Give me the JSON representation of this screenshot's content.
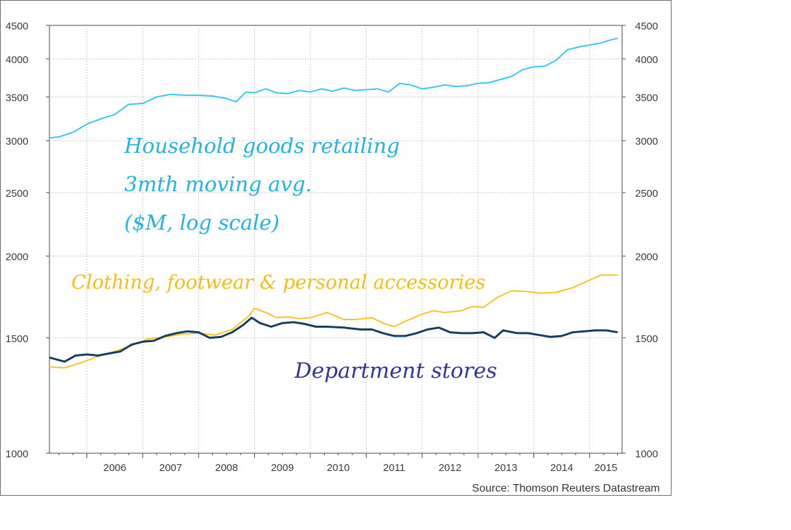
{
  "chart_data": {
    "type": "line",
    "yscale": "log",
    "ylim": [
      1000,
      4500
    ],
    "y_ticks": [
      1000,
      1500,
      2000,
      2500,
      3000,
      3500,
      4000,
      4500
    ],
    "y_tick_labels": [
      "1000",
      "1500",
      "2000",
      "2500",
      "3000",
      "3500",
      "4000",
      "4500"
    ],
    "x_labels": [
      "2006",
      "2007",
      "2008",
      "2009",
      "2010",
      "2011",
      "2012",
      "2013",
      "2014",
      "2015"
    ],
    "x_range": [
      2005.33,
      2015.58
    ],
    "grid": true,
    "source": "Source: Thomson Reuters Datastream",
    "series": [
      {
        "name": "Household goods retailing 3mth moving avg. ($M, log scale)",
        "color": "#35c8ef",
        "annotation_color": "#22b4dc",
        "points": [
          [
            2005.33,
            3030
          ],
          [
            2005.5,
            3040
          ],
          [
            2005.75,
            3090
          ],
          [
            2006.0,
            3180
          ],
          [
            2006.25,
            3240
          ],
          [
            2006.5,
            3290
          ],
          [
            2006.75,
            3410
          ],
          [
            2007.0,
            3420
          ],
          [
            2007.25,
            3500
          ],
          [
            2007.5,
            3530
          ],
          [
            2007.75,
            3520
          ],
          [
            2008.0,
            3520
          ],
          [
            2008.25,
            3510
          ],
          [
            2008.5,
            3480
          ],
          [
            2008.67,
            3440
          ],
          [
            2008.85,
            3560
          ],
          [
            2009.0,
            3550
          ],
          [
            2009.2,
            3600
          ],
          [
            2009.4,
            3550
          ],
          [
            2009.6,
            3540
          ],
          [
            2009.8,
            3580
          ],
          [
            2010.0,
            3560
          ],
          [
            2010.2,
            3600
          ],
          [
            2010.4,
            3570
          ],
          [
            2010.6,
            3610
          ],
          [
            2010.8,
            3580
          ],
          [
            2011.0,
            3590
          ],
          [
            2011.2,
            3600
          ],
          [
            2011.4,
            3560
          ],
          [
            2011.6,
            3670
          ],
          [
            2011.8,
            3650
          ],
          [
            2012.0,
            3600
          ],
          [
            2012.2,
            3620
          ],
          [
            2012.4,
            3650
          ],
          [
            2012.6,
            3630
          ],
          [
            2012.8,
            3640
          ],
          [
            2013.0,
            3670
          ],
          [
            2013.2,
            3680
          ],
          [
            2013.4,
            3720
          ],
          [
            2013.6,
            3760
          ],
          [
            2013.8,
            3850
          ],
          [
            2014.0,
            3890
          ],
          [
            2014.2,
            3900
          ],
          [
            2014.4,
            3980
          ],
          [
            2014.6,
            4130
          ],
          [
            2014.8,
            4170
          ],
          [
            2015.0,
            4200
          ],
          [
            2015.2,
            4230
          ],
          [
            2015.35,
            4270
          ],
          [
            2015.5,
            4300
          ]
        ]
      },
      {
        "name": "Clothing, footwear & personal accessories",
        "color": "#f2c521",
        "annotation_color": "#f2bf12",
        "points": [
          [
            2005.33,
            1355
          ],
          [
            2005.6,
            1350
          ],
          [
            2005.9,
            1375
          ],
          [
            2006.2,
            1405
          ],
          [
            2006.5,
            1430
          ],
          [
            2006.8,
            1460
          ],
          [
            2007.1,
            1495
          ],
          [
            2007.4,
            1505
          ],
          [
            2007.7,
            1520
          ],
          [
            2008.0,
            1525
          ],
          [
            2008.3,
            1515
          ],
          [
            2008.6,
            1545
          ],
          [
            2008.9,
            1620
          ],
          [
            2009.0,
            1665
          ],
          [
            2009.2,
            1640
          ],
          [
            2009.4,
            1610
          ],
          [
            2009.6,
            1615
          ],
          [
            2009.8,
            1605
          ],
          [
            2010.0,
            1610
          ],
          [
            2010.3,
            1640
          ],
          [
            2010.6,
            1600
          ],
          [
            2010.8,
            1600
          ],
          [
            2011.1,
            1610
          ],
          [
            2011.3,
            1580
          ],
          [
            2011.5,
            1560
          ],
          [
            2011.7,
            1590
          ],
          [
            2012.0,
            1630
          ],
          [
            2012.2,
            1650
          ],
          [
            2012.4,
            1640
          ],
          [
            2012.7,
            1650
          ],
          [
            2012.9,
            1675
          ],
          [
            2013.1,
            1670
          ],
          [
            2013.35,
            1730
          ],
          [
            2013.6,
            1770
          ],
          [
            2013.9,
            1765
          ],
          [
            2014.1,
            1755
          ],
          [
            2014.4,
            1760
          ],
          [
            2014.7,
            1790
          ],
          [
            2014.95,
            1830
          ],
          [
            2015.2,
            1870
          ],
          [
            2015.5,
            1870
          ]
        ]
      },
      {
        "name": "Department stores",
        "color": "#163c5e",
        "annotation_color": "#33339c",
        "points": [
          [
            2005.33,
            1400
          ],
          [
            2005.6,
            1380
          ],
          [
            2005.8,
            1410
          ],
          [
            2006.0,
            1415
          ],
          [
            2006.2,
            1410
          ],
          [
            2006.4,
            1420
          ],
          [
            2006.6,
            1430
          ],
          [
            2006.8,
            1465
          ],
          [
            2007.0,
            1480
          ],
          [
            2007.2,
            1485
          ],
          [
            2007.4,
            1510
          ],
          [
            2007.6,
            1525
          ],
          [
            2007.8,
            1535
          ],
          [
            2008.0,
            1530
          ],
          [
            2008.2,
            1500
          ],
          [
            2008.4,
            1505
          ],
          [
            2008.6,
            1530
          ],
          [
            2008.8,
            1570
          ],
          [
            2008.95,
            1610
          ],
          [
            2009.1,
            1580
          ],
          [
            2009.3,
            1560
          ],
          [
            2009.5,
            1580
          ],
          [
            2009.7,
            1585
          ],
          [
            2009.9,
            1575
          ],
          [
            2010.1,
            1560
          ],
          [
            2010.3,
            1560
          ],
          [
            2010.6,
            1555
          ],
          [
            2010.9,
            1545
          ],
          [
            2011.1,
            1545
          ],
          [
            2011.3,
            1525
          ],
          [
            2011.5,
            1510
          ],
          [
            2011.7,
            1510
          ],
          [
            2011.9,
            1525
          ],
          [
            2012.1,
            1545
          ],
          [
            2012.3,
            1555
          ],
          [
            2012.5,
            1530
          ],
          [
            2012.7,
            1525
          ],
          [
            2012.9,
            1525
          ],
          [
            2013.1,
            1530
          ],
          [
            2013.3,
            1500
          ],
          [
            2013.45,
            1540
          ],
          [
            2013.7,
            1525
          ],
          [
            2013.9,
            1525
          ],
          [
            2014.1,
            1515
          ],
          [
            2014.3,
            1505
          ],
          [
            2014.5,
            1510
          ],
          [
            2014.7,
            1530
          ],
          [
            2014.9,
            1535
          ],
          [
            2015.1,
            1540
          ],
          [
            2015.3,
            1540
          ],
          [
            2015.5,
            1530
          ]
        ]
      }
    ],
    "annotations": [
      {
        "lines": [
          "Household goods retailing",
          "3mth moving avg.",
          "($M, log scale)"
        ],
        "color": "#22b4dc"
      },
      {
        "lines": [
          "Clothing, footwear & personal accessories"
        ],
        "color": "#f2bf12"
      },
      {
        "lines": [
          "Department stores"
        ],
        "color": "#33339c"
      }
    ]
  }
}
